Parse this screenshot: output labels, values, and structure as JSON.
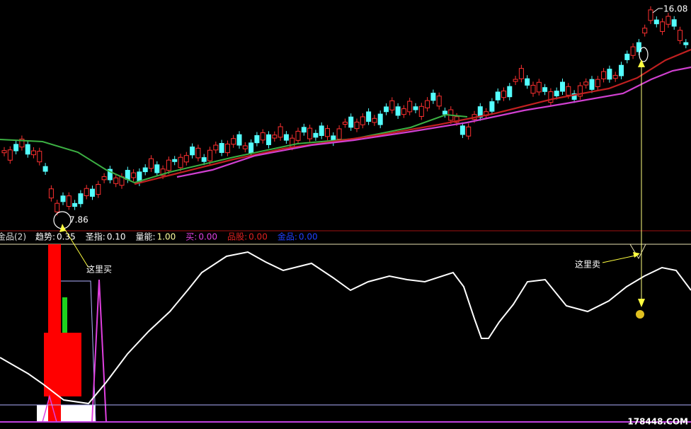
{
  "price_labels": {
    "low": "7.86",
    "high": "16.08"
  },
  "indicator": {
    "name": "金品(2)",
    "items": [
      {
        "label": "趋势:",
        "value": "0.35"
      },
      {
        "label": "圣指:",
        "value": "0.10"
      },
      {
        "label": "量能:",
        "value": "1.00"
      },
      {
        "label": "买:",
        "value": "0.00"
      },
      {
        "label": "品股:",
        "value": "0.00"
      },
      {
        "label": "金品:",
        "value": "0.00"
      }
    ]
  },
  "annotations": {
    "buy": "这里买",
    "sell": "这里卖"
  },
  "watermark": "178448.COM"
}
